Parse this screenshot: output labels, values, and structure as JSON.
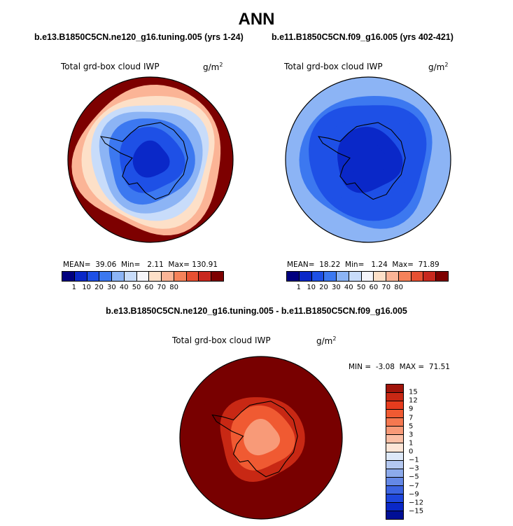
{
  "title": "ANN",
  "colors": {
    "land_outline": "#000000",
    "ramp10": [
      "#00007f",
      "#0a28c8",
      "#1e50e6",
      "#3c78f0",
      "#8cb4f5",
      "#c8dcfa",
      "#f5f5fa",
      "#fde0c8",
      "#fbb496",
      "#f5825a",
      "#e65032",
      "#c8281e",
      "#7d0000"
    ],
    "diff_ramp": [
      "#780000",
      "#a0140a",
      "#c82814",
      "#e63c1e",
      "#f05a32",
      "#f57850",
      "#f89a78",
      "#fbbfa5",
      "#fde6d7",
      "#dde8f8",
      "#b4c8f0",
      "#8caaeb",
      "#6488e6",
      "#3c64e1",
      "#1e46dc",
      "#0a28c8",
      "#000f96",
      "#000064"
    ]
  },
  "chart_data": [
    {
      "type": "heatmap",
      "projection": "south-polar-stereographic",
      "case_title": "b.e13.B1850C5CN.ne120_g16.tuning.005 (yrs 1-24)",
      "variable_label": "Total grd-box cloud IWP",
      "units_base": "g/m",
      "units_exp": "2",
      "stats_text": "MEAN=  39.06  Min=   2.11  Max= 130.91",
      "mean": 39.06,
      "min": 2.11,
      "max": 130.91,
      "colorbar_levels": [
        "1",
        "10",
        "20",
        "30",
        "40",
        "50",
        "60",
        "70",
        "80"
      ],
      "field": [
        {
          "lat": -90,
          "value": 2.5
        },
        {
          "lat": -80,
          "value": 6
        },
        {
          "lat": -72,
          "value": 14
        },
        {
          "lat": -66,
          "value": 24
        },
        {
          "lat": -61,
          "value": 35
        },
        {
          "lat": -57,
          "value": 48
        },
        {
          "lat": -53,
          "value": 62
        },
        {
          "lat": -49,
          "value": 75
        },
        {
          "lat": -44,
          "value": 90
        }
      ]
    },
    {
      "type": "heatmap",
      "projection": "south-polar-stereographic",
      "case_title": "b.e11.B1850C5CN.f09_g16.005 (yrs 402-421)",
      "variable_label": "Total grd-box cloud IWP",
      "units_base": "g/m",
      "units_exp": "2",
      "stats_text": "MEAN=  18.22  Min=   1.24  Max=  71.89",
      "mean": 18.22,
      "min": 1.24,
      "max": 71.89,
      "colorbar_levels": [
        "1",
        "10",
        "20",
        "30",
        "40",
        "50",
        "60",
        "70",
        "80"
      ],
      "field": [
        {
          "lat": -90,
          "value": 1.5
        },
        {
          "lat": -80,
          "value": 3
        },
        {
          "lat": -72,
          "value": 7
        },
        {
          "lat": -66,
          "value": 11
        },
        {
          "lat": -61,
          "value": 15
        },
        {
          "lat": -57,
          "value": 19
        },
        {
          "lat": -53,
          "value": 24
        },
        {
          "lat": -49,
          "value": 30
        },
        {
          "lat": -44,
          "value": 36
        }
      ]
    },
    {
      "type": "heatmap",
      "projection": "south-polar-stereographic",
      "case_title": "b.e13.B1850C5CN.ne120_g16.tuning.005 - b.e11.B1850C5CN.f09_g16.005",
      "variable_label": "Total grd-box cloud IWP",
      "units_base": "g/m",
      "units_exp": "2",
      "stats_text": "MIN =  -3.08  MAX =  71.51",
      "min": -3.08,
      "max": 71.51,
      "colorbar_levels": [
        "15",
        "12",
        "9",
        "7",
        "5",
        "3",
        "1",
        "0",
        "−1",
        "−3",
        "−5",
        "−7",
        "−9",
        "−12",
        "−15"
      ],
      "field": [
        {
          "lat": -90,
          "value": 2
        },
        {
          "lat": -80,
          "value": 3
        },
        {
          "lat": -72,
          "value": 6
        },
        {
          "lat": -66,
          "value": 12
        },
        {
          "lat": -61,
          "value": 20
        },
        {
          "lat": -55,
          "value": 30
        }
      ]
    }
  ]
}
